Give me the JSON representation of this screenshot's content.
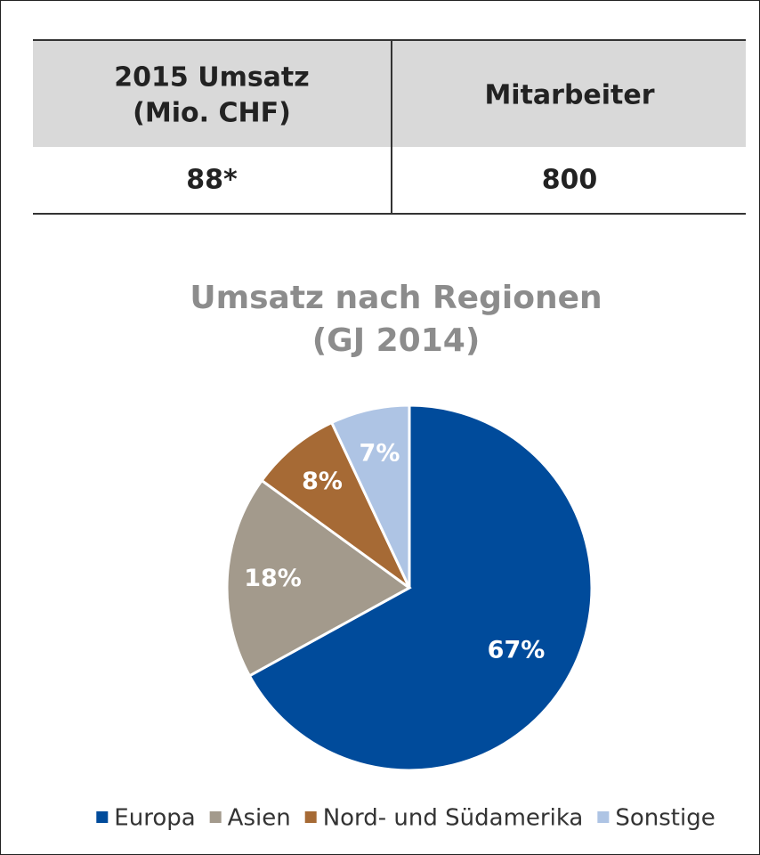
{
  "table": {
    "header": [
      [
        "2015 Umsatz",
        "(Mio. CHF)"
      ],
      "Mitarbeiter"
    ],
    "rows": [
      [
        "88*",
        "800"
      ]
    ]
  },
  "chart_data": {
    "type": "pie",
    "title": [
      "Umsatz nach Regionen",
      "(GJ 2014)"
    ],
    "categories": [
      "Europa",
      "Asien",
      "Nord- und Südamerika",
      "Sonstige"
    ],
    "values": [
      67,
      18,
      8,
      7
    ],
    "value_labels": [
      "67%",
      "18%",
      "8%",
      "7%"
    ],
    "colors": [
      "#004b9b",
      "#a39a8c",
      "#a66a35",
      "#aec4e4"
    ],
    "legend": "bottom"
  }
}
